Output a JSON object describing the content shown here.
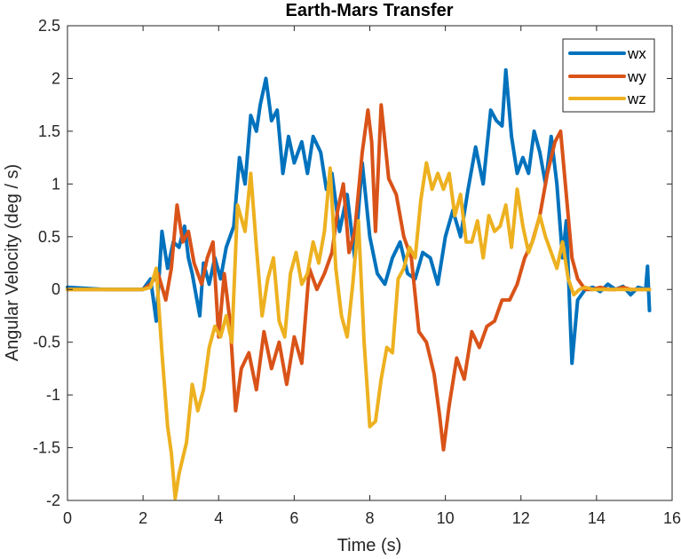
{
  "chart_data": {
    "type": "line",
    "title": "Earth-Mars Transfer",
    "xlabel": "Time (s)",
    "ylabel": "Angular Velocity (deg / s)",
    "xlim": [
      0,
      16
    ],
    "ylim": [
      -2,
      2.5
    ],
    "xticks": [
      0,
      2,
      4,
      6,
      8,
      10,
      12,
      14,
      16
    ],
    "yticks": [
      -2,
      -1.5,
      -1,
      -0.5,
      0,
      0.5,
      1,
      1.5,
      2,
      2.5
    ],
    "xtick_labels": [
      "0",
      "2",
      "4",
      "6",
      "8",
      "10",
      "12",
      "14",
      "16"
    ],
    "ytick_labels": [
      "-2",
      "-1.5",
      "-1",
      "-0.5",
      "0",
      "0.5",
      "1",
      "1.5",
      "2",
      "2.5"
    ],
    "grid": false,
    "legend_position": "top-right",
    "series": [
      {
        "name": "wx",
        "color": "#0072BD",
        "x": [
          0,
          1.0,
          2.0,
          2.2,
          2.35,
          2.5,
          2.65,
          2.8,
          2.95,
          3.1,
          3.2,
          3.3,
          3.5,
          3.6,
          3.75,
          3.9,
          4.05,
          4.2,
          4.4,
          4.55,
          4.7,
          4.85,
          5.0,
          5.1,
          5.25,
          5.4,
          5.55,
          5.7,
          5.85,
          6.0,
          6.2,
          6.35,
          6.5,
          6.7,
          6.85,
          7.0,
          7.2,
          7.4,
          7.6,
          7.8,
          8.0,
          8.2,
          8.4,
          8.6,
          8.8,
          9.0,
          9.2,
          9.4,
          9.6,
          9.8,
          10.0,
          10.2,
          10.4,
          10.6,
          10.8,
          11.0,
          11.2,
          11.35,
          11.5,
          11.6,
          11.75,
          11.9,
          12.05,
          12.2,
          12.35,
          12.5,
          12.65,
          12.8,
          12.95,
          13.1,
          13.2,
          13.35,
          13.5,
          13.7,
          13.9,
          14.1,
          14.3,
          14.5,
          14.7,
          14.9,
          15.1,
          15.3,
          15.35,
          15.4
        ],
        "values": [
          0.02,
          0.0,
          0.0,
          0.1,
          -0.3,
          0.55,
          0.2,
          0.45,
          0.4,
          0.6,
          0.3,
          0.15,
          -0.25,
          0.25,
          0.05,
          0.3,
          0.1,
          0.4,
          0.6,
          1.25,
          1.0,
          1.65,
          1.5,
          1.75,
          2.0,
          1.6,
          1.7,
          1.1,
          1.45,
          1.2,
          1.4,
          1.1,
          1.45,
          1.3,
          0.95,
          1.1,
          0.55,
          0.9,
          0.3,
          1.2,
          0.5,
          0.15,
          0.05,
          0.3,
          0.45,
          0.15,
          0.1,
          0.35,
          0.3,
          0.05,
          0.5,
          0.75,
          0.5,
          0.95,
          1.35,
          1.0,
          1.7,
          1.6,
          1.55,
          2.08,
          1.45,
          1.1,
          1.25,
          1.1,
          1.5,
          1.3,
          1.0,
          1.45,
          1.0,
          0.3,
          0.65,
          -0.7,
          -0.1,
          0.0,
          0.02,
          -0.02,
          0.05,
          0.0,
          0.03,
          -0.05,
          0.02,
          0.0,
          0.22,
          -0.2
        ]
      },
      {
        "name": "wy",
        "color": "#D95319",
        "x": [
          0,
          1.0,
          2.0,
          2.2,
          2.4,
          2.6,
          2.75,
          2.9,
          3.05,
          3.2,
          3.35,
          3.55,
          3.7,
          3.85,
          4.0,
          4.15,
          4.3,
          4.45,
          4.6,
          4.8,
          5.0,
          5.2,
          5.4,
          5.6,
          5.8,
          6.0,
          6.2,
          6.4,
          6.6,
          6.8,
          7.0,
          7.15,
          7.3,
          7.45,
          7.6,
          7.8,
          7.95,
          8.05,
          8.15,
          8.3,
          8.5,
          8.7,
          8.9,
          9.1,
          9.3,
          9.5,
          9.7,
          9.85,
          9.95,
          10.1,
          10.3,
          10.5,
          10.7,
          10.9,
          11.1,
          11.3,
          11.5,
          11.7,
          11.9,
          12.1,
          12.3,
          12.5,
          12.7,
          12.9,
          13.05,
          13.2,
          13.35,
          13.5,
          13.7,
          13.9,
          14.1,
          14.3,
          14.5,
          14.7,
          14.9,
          15.1,
          15.3,
          15.4
        ],
        "values": [
          0.0,
          0.0,
          0.0,
          0.05,
          0.15,
          -0.1,
          0.2,
          0.8,
          0.45,
          0.55,
          0.25,
          0.05,
          0.3,
          0.45,
          -0.45,
          0.15,
          -0.3,
          -1.15,
          -0.75,
          -0.6,
          -0.95,
          -0.4,
          -0.75,
          -0.5,
          -0.9,
          -0.45,
          -0.7,
          0.2,
          0.0,
          0.15,
          0.35,
          0.75,
          1.0,
          0.35,
          0.55,
          1.3,
          1.7,
          1.4,
          0.55,
          1.75,
          1.05,
          0.9,
          0.5,
          0.3,
          -0.4,
          -0.5,
          -0.8,
          -1.2,
          -1.52,
          -1.1,
          -0.65,
          -0.85,
          -0.4,
          -0.55,
          -0.35,
          -0.3,
          -0.1,
          -0.1,
          0.05,
          0.3,
          0.45,
          0.7,
          1.1,
          1.4,
          1.5,
          0.9,
          0.3,
          0.1,
          0.0,
          0.0,
          0.02,
          0.0,
          0.0,
          0.02,
          0.0,
          0.0,
          0.0,
          0.0
        ]
      },
      {
        "name": "wz",
        "color": "#EDB120",
        "x": [
          0,
          1.0,
          2.0,
          2.2,
          2.35,
          2.5,
          2.65,
          2.75,
          2.85,
          2.95,
          3.05,
          3.15,
          3.3,
          3.45,
          3.6,
          3.75,
          3.9,
          4.05,
          4.2,
          4.35,
          4.5,
          4.7,
          4.85,
          5.0,
          5.15,
          5.3,
          5.45,
          5.6,
          5.75,
          5.9,
          6.05,
          6.2,
          6.35,
          6.5,
          6.65,
          6.8,
          6.95,
          7.1,
          7.25,
          7.4,
          7.55,
          7.7,
          7.85,
          8.0,
          8.15,
          8.3,
          8.45,
          8.6,
          8.75,
          8.9,
          9.05,
          9.2,
          9.35,
          9.5,
          9.65,
          9.8,
          9.95,
          10.1,
          10.25,
          10.4,
          10.55,
          10.7,
          10.85,
          11.0,
          11.15,
          11.3,
          11.45,
          11.6,
          11.75,
          11.9,
          12.05,
          12.2,
          12.35,
          12.5,
          12.65,
          12.8,
          12.95,
          13.1,
          13.25,
          13.4,
          13.55,
          13.7,
          13.9,
          14.1,
          14.3,
          14.5,
          14.7,
          14.9,
          15.1,
          15.3,
          15.4
        ],
        "values": [
          0.0,
          0.0,
          0.0,
          0.02,
          0.2,
          -0.6,
          -1.3,
          -1.55,
          -1.98,
          -1.75,
          -1.6,
          -1.45,
          -0.9,
          -1.15,
          -0.95,
          -0.55,
          -0.35,
          -0.45,
          -0.25,
          -0.5,
          0.8,
          0.55,
          1.1,
          0.4,
          -0.25,
          0.1,
          0.3,
          -0.3,
          -0.45,
          0.15,
          0.35,
          0.05,
          0.15,
          0.45,
          0.25,
          0.55,
          1.15,
          0.2,
          -0.25,
          -0.45,
          0.05,
          0.65,
          -0.5,
          -1.3,
          -1.25,
          -0.85,
          -0.55,
          -0.6,
          0.1,
          0.2,
          0.4,
          0.3,
          0.85,
          1.2,
          0.95,
          1.1,
          0.95,
          1.1,
          0.7,
          0.9,
          0.45,
          0.45,
          0.65,
          0.3,
          0.7,
          0.55,
          0.6,
          0.8,
          0.4,
          0.95,
          0.6,
          0.35,
          0.5,
          0.7,
          0.5,
          0.35,
          0.2,
          0.45,
          0.1,
          -0.05,
          0.0,
          0.02,
          0.0,
          0.0,
          0.0,
          0.0,
          0.0,
          0.0,
          0.0,
          0.0,
          0.0
        ]
      }
    ]
  }
}
